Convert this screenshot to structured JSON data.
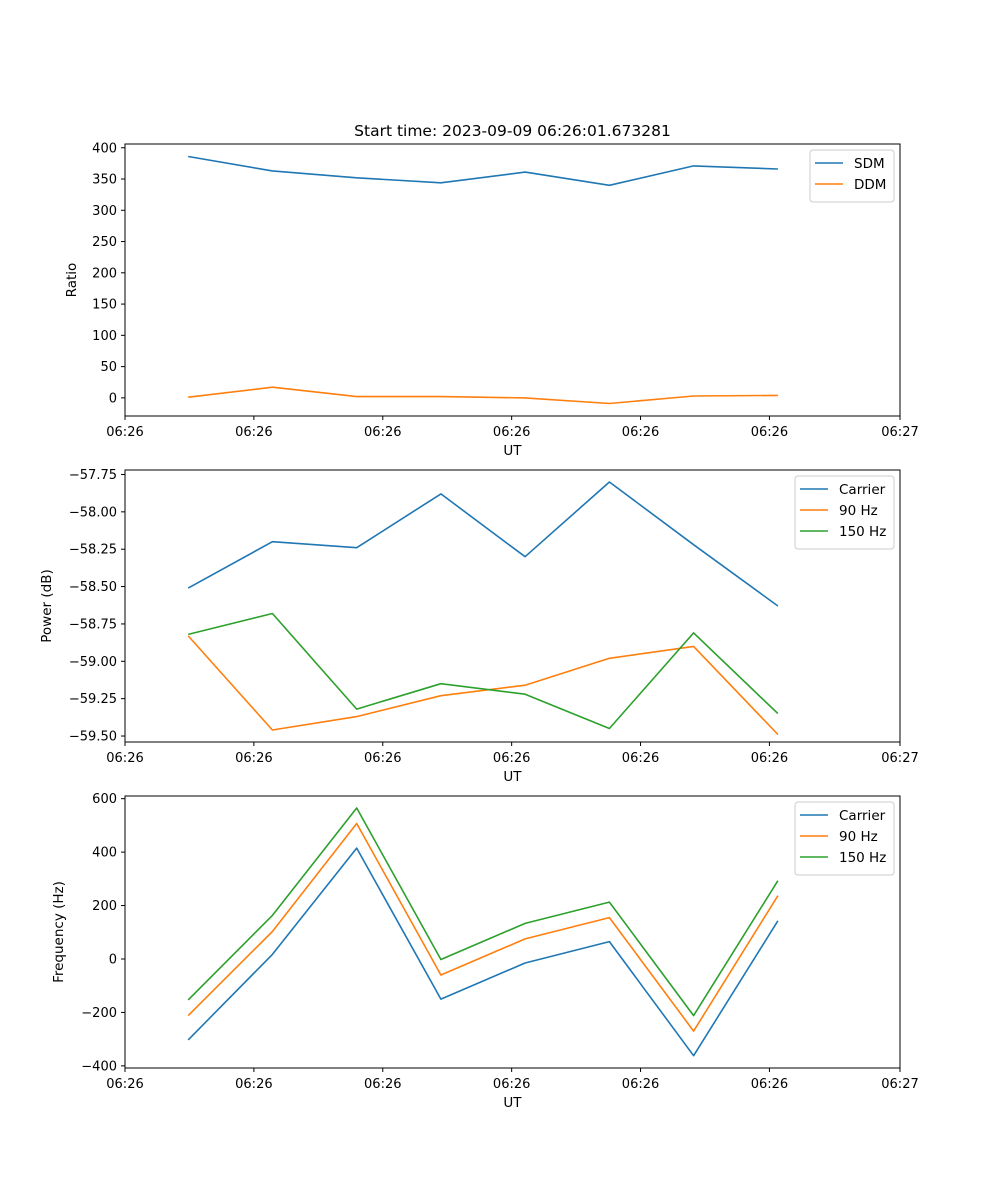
{
  "title": "Start time: 2023-09-09 06:26:01.673281",
  "chart_data": [
    {
      "type": "line",
      "title": "Start time: 2023-09-09 06:26:01.673281",
      "xlabel": "UT",
      "ylabel": "Ratio",
      "x": [
        1,
        2,
        3,
        4,
        5,
        6,
        7,
        8
      ],
      "xlim": [
        0.25,
        9.45
      ],
      "x_ticks": [
        0.25,
        1.78,
        3.31,
        4.84,
        6.37,
        7.9,
        9.45
      ],
      "x_tick_labels": [
        "06:26",
        "06:26",
        "06:26",
        "06:26",
        "06:26",
        "06:26",
        "06:27"
      ],
      "ylim": [
        -29,
        406
      ],
      "y_ticks": [
        0,
        50,
        100,
        150,
        200,
        250,
        300,
        350,
        400
      ],
      "y_tick_labels": [
        "0",
        "50",
        "100",
        "150",
        "200",
        "250",
        "300",
        "350",
        "400"
      ],
      "legend_position": "top-right",
      "series": [
        {
          "name": "SDM",
          "color": "#1f77b4",
          "values": [
            386,
            363,
            352,
            344,
            361,
            340,
            371,
            366
          ]
        },
        {
          "name": "DDM",
          "color": "#ff7f0e",
          "values": [
            1,
            17,
            2,
            2,
            0,
            -9,
            3,
            4
          ]
        }
      ]
    },
    {
      "type": "line",
      "title": "",
      "xlabel": "UT",
      "ylabel": "Power (dB)",
      "x": [
        1,
        2,
        3,
        4,
        5,
        6,
        7,
        8
      ],
      "xlim": [
        0.25,
        9.45
      ],
      "x_ticks": [
        0.25,
        1.78,
        3.31,
        4.84,
        6.37,
        7.9,
        9.45
      ],
      "x_tick_labels": [
        "06:26",
        "06:26",
        "06:26",
        "06:26",
        "06:26",
        "06:26",
        "06:27"
      ],
      "ylim": [
        -59.54,
        -57.72
      ],
      "y_ticks": [
        -59.5,
        -59.25,
        -59.0,
        -58.75,
        -58.5,
        -58.25,
        -58.0,
        -57.75
      ],
      "y_tick_labels": [
        "−59.50",
        "−59.25",
        "−59.00",
        "−58.75",
        "−58.50",
        "−58.25",
        "−58.00",
        "−57.75"
      ],
      "legend_position": "top-right",
      "series": [
        {
          "name": "Carrier",
          "color": "#1f77b4",
          "values": [
            -58.51,
            -58.2,
            -58.24,
            -57.88,
            -58.3,
            -57.8,
            -58.22,
            -58.63
          ]
        },
        {
          "name": "90 Hz",
          "color": "#ff7f0e",
          "values": [
            -58.83,
            -59.46,
            -59.37,
            -59.23,
            -59.16,
            -58.98,
            -58.9,
            -59.49
          ]
        },
        {
          "name": "150 Hz",
          "color": "#2ca02c",
          "values": [
            -58.82,
            -58.68,
            -59.32,
            -59.15,
            -59.22,
            -59.45,
            -58.81,
            -59.35
          ]
        }
      ]
    },
    {
      "type": "line",
      "title": "",
      "xlabel": "UT",
      "ylabel": "Frequency (Hz)",
      "x": [
        1,
        2,
        3,
        4,
        5,
        6,
        7,
        8
      ],
      "xlim": [
        0.25,
        9.45
      ],
      "x_ticks": [
        0.25,
        1.78,
        3.31,
        4.84,
        6.37,
        7.9,
        9.45
      ],
      "x_tick_labels": [
        "06:26",
        "06:26",
        "06:26",
        "06:26",
        "06:26",
        "06:26",
        "06:27"
      ],
      "ylim": [
        -408,
        610
      ],
      "y_ticks": [
        -400,
        -200,
        0,
        200,
        400,
        600
      ],
      "y_tick_labels": [
        "−400",
        "−200",
        "0",
        "200",
        "400",
        "600"
      ],
      "legend_position": "top-right",
      "series": [
        {
          "name": "Carrier",
          "color": "#1f77b4",
          "values": [
            -303,
            17,
            415,
            -150,
            -15,
            65,
            -362,
            143
          ]
        },
        {
          "name": "90 Hz",
          "color": "#ff7f0e",
          "values": [
            -212,
            103,
            507,
            -60,
            75,
            155,
            -270,
            237
          ]
        },
        {
          "name": "150 Hz",
          "color": "#2ca02c",
          "values": [
            -153,
            163,
            565,
            -2,
            133,
            213,
            -212,
            293
          ]
        }
      ]
    }
  ]
}
